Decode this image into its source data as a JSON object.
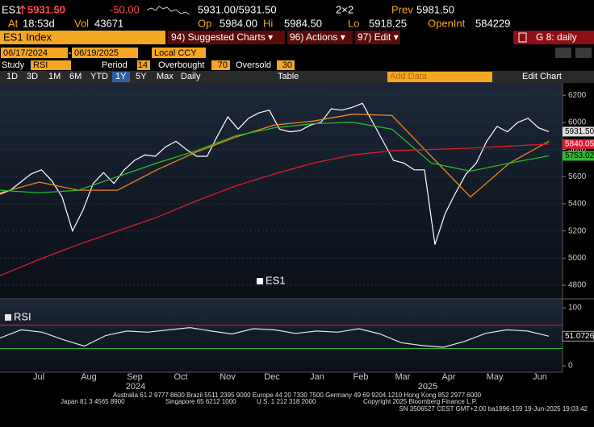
{
  "quote": {
    "symbol": "ES1",
    "last": "5931.50",
    "change": "-50.00",
    "bid_ask": "5931.00/5931.50",
    "size": "2×2",
    "prev": {
      "label": "Prev",
      "value": "5981.50"
    }
  },
  "stats": [
    {
      "label": "At",
      "value": "18:53d"
    },
    {
      "label": "Vol",
      "value": "43671"
    },
    {
      "label": "Op",
      "value": "5984.00"
    },
    {
      "label": "Hi",
      "value": "5984.50"
    },
    {
      "label": "Lo",
      "value": "5918.25"
    },
    {
      "label": "OpenInt",
      "value": "584229"
    }
  ],
  "menu": {
    "security": "ES1 Index",
    "items": [
      "94) Suggested Charts ▾",
      "96) Actions ▾",
      "97) Edit ▾"
    ],
    "layout": "G 8: daily"
  },
  "range": {
    "start": "06/17/2024",
    "end": "06/19/2025",
    "currency": "Local CCY"
  },
  "study": {
    "label": "Study",
    "name": "RSI",
    "params": [
      {
        "label": "Period",
        "value": 14
      },
      {
        "label": "Overbought",
        "value": 70
      },
      {
        "label": "Oversold",
        "value": 30
      }
    ]
  },
  "toolbar": {
    "ranges": [
      "1D",
      "3D",
      "1M",
      "6M",
      "YTD",
      "1Y",
      "5Y",
      "Max",
      "Daily"
    ],
    "active_index": 5,
    "table": "Table",
    "add_data": "Add Data",
    "edit_chart": "Edit Chart"
  },
  "chart_data": [
    {
      "type": "line",
      "ylim": [
        4705,
        6290
      ],
      "yticks": [
        4800,
        5000,
        5200,
        5400,
        5600,
        5800,
        6000,
        6200
      ],
      "grid": true,
      "series": [
        {
          "name": "ES1",
          "color": "#ffffff",
          "last_label": "5931.50",
          "values": [
            5470,
            5500,
            5560,
            5620,
            5650,
            5570,
            5450,
            5200,
            5350,
            5550,
            5630,
            5550,
            5650,
            5720,
            5760,
            5750,
            5820,
            5860,
            5800,
            5750,
            5750,
            5900,
            6040,
            5950,
            6030,
            6070,
            6090,
            5950,
            5930,
            5940,
            5980,
            6000,
            6100,
            6090,
            6110,
            6140,
            6000,
            5860,
            5720,
            5700,
            5650,
            5650,
            5100,
            5330,
            5480,
            5620,
            5700,
            5860,
            5970,
            5930,
            6000,
            6030,
            5960,
            5931.5
          ]
        },
        {
          "color": "#e8891a",
          "values": [
            5480,
            5560,
            5500,
            5500,
            5650,
            5780,
            5890,
            5980,
            6010,
            6060,
            6050,
            5750,
            5450,
            5700,
            5860
          ]
        },
        {
          "color": "#2fb82f",
          "last_label": "5753.02",
          "values": [
            5500,
            5480,
            5500,
            5600,
            5700,
            5790,
            5900,
            5960,
            5990,
            6000,
            5950,
            5700,
            5640,
            5700,
            5753.02
          ]
        },
        {
          "color": "#e01b2a",
          "last_label": "5840.05",
          "values": [
            4870,
            4990,
            5100,
            5200,
            5300,
            5420,
            5530,
            5620,
            5700,
            5760,
            5790,
            5800,
            5810,
            5825,
            5840.05
          ]
        }
      ]
    },
    {
      "type": "line",
      "ylim": [
        -11,
        114
      ],
      "yticks": [
        0,
        50,
        100
      ],
      "series": [
        {
          "name": "RSI",
          "color": "#e6e6e6",
          "last_label": "51.0726",
          "values": [
            48,
            62,
            58,
            45,
            34,
            52,
            60,
            58,
            62,
            66,
            60,
            55,
            64,
            62,
            56,
            60,
            58,
            64,
            55,
            40,
            35,
            32,
            42,
            56,
            62,
            60,
            51.0726
          ]
        }
      ]
    }
  ],
  "x_labels": [
    "Jul",
    "Aug",
    "Sep",
    "Oct",
    "Nov",
    "Dec",
    "Jan",
    "Feb",
    "Mar",
    "Apr",
    "May",
    "Jun"
  ],
  "years": [
    "2024",
    "2025"
  ],
  "footer": [
    "Australia 61 2 9777 8600 Brazil 5511 2395 9000 Europe 44 20 7330 7500 Germany 49 69 9204 1210 Hong Kong 852 2977 6000",
    "Japan 81 3 4565 8900",
    "Singapore 65 6212 1000",
    "U.S. 1 212 318 2000",
    "Copyright 2025 Bloomberg Finance L.P.",
    "SN 3506527 CEST GMT+2:00 ba1996-159 19-Jun-2025 19:03:42"
  ]
}
